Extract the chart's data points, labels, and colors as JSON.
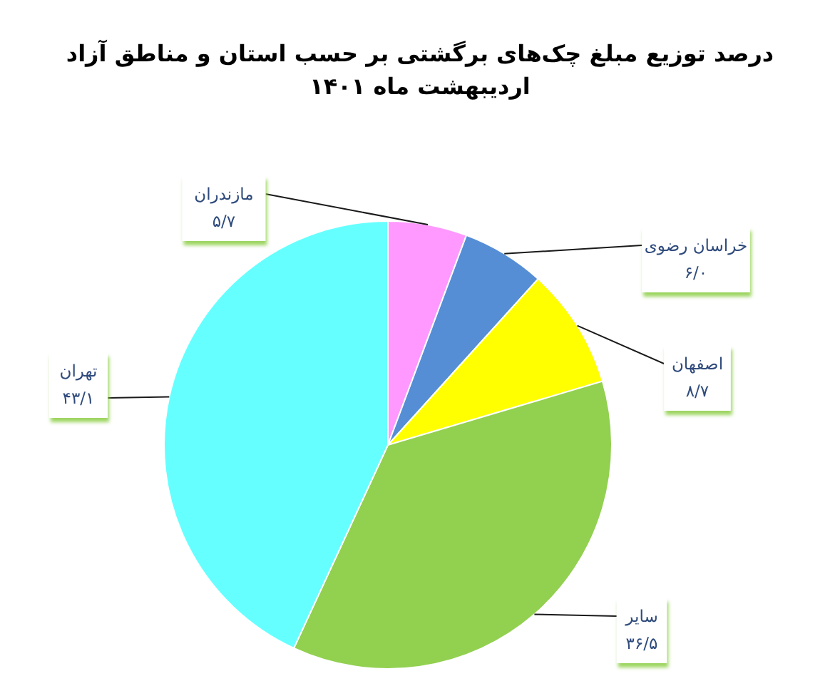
{
  "chart_data": {
    "type": "pie",
    "title": "درصد توزیع مبلغ چک‌های برگشتی بر حسب استان و مناطق آزاد",
    "subtitle": "اردیبهشت ماه ۱۴۰۱",
    "categories": [
      "مازندران",
      "خراسان رضوی",
      "اصفهان",
      "سایر",
      "تهران"
    ],
    "values": [
      5.7,
      6.0,
      8.7,
      36.5,
      43.1
    ],
    "colors": [
      "#ff99ff",
      "#558ed5",
      "#ffff00",
      "#92d050",
      "#66ffff"
    ],
    "value_labels": [
      "۵/۷",
      "۶/۰",
      "۸/۷",
      "۳۶/۵",
      "۴۳/۱"
    ]
  }
}
